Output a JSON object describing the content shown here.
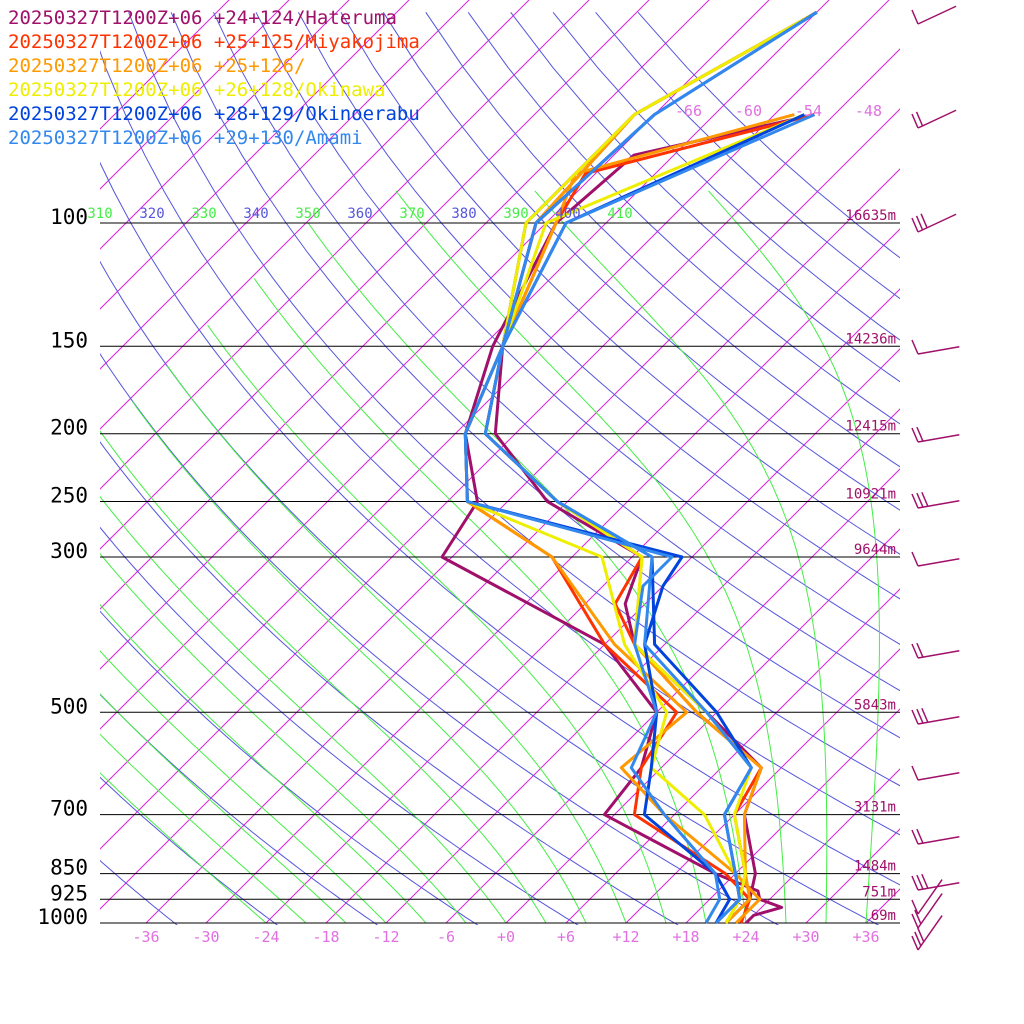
{
  "chart_data": {
    "type": "line",
    "subtype": "skew-t log-p sounding",
    "colors": {
      "isotherm": "#dd22dd",
      "dry_adiabat": "#5555dd",
      "moist_adiabat": "#44ee44",
      "isobar": "#000000",
      "height_label": "#a0106a",
      "wind_barb": "#a0106a"
    },
    "pressure_levels": [
      {
        "p": 100,
        "label": "100",
        "height": "16635m"
      },
      {
        "p": 150,
        "label": "150",
        "height": "14236m"
      },
      {
        "p": 200,
        "label": "200",
        "height": "12415m"
      },
      {
        "p": 250,
        "label": "250",
        "height": "10921m"
      },
      {
        "p": 300,
        "label": "300",
        "height": "9644m"
      },
      {
        "p": 500,
        "label": "500",
        "height": "5843m"
      },
      {
        "p": 700,
        "label": "700",
        "height": "3131m"
      },
      {
        "p": 850,
        "label": "850",
        "height": "1484m"
      },
      {
        "p": 925,
        "label": "925",
        "height": "751m"
      },
      {
        "p": 1000,
        "label": "1000",
        "height": "69m"
      }
    ],
    "x_ticks": [
      "-36",
      "-30",
      "-24",
      "-18",
      "-12",
      "-6",
      "+0",
      "+6",
      "+12",
      "+18",
      "+24",
      "+30",
      "+36"
    ],
    "x_tick_values": [
      -36,
      -30,
      -24,
      -18,
      -12,
      -6,
      0,
      6,
      12,
      18,
      24,
      30,
      36
    ],
    "isotherm_top_labels": [
      "-66",
      "-60",
      "-54",
      "-48"
    ],
    "isotherm_top_values": [
      -66,
      -60,
      -54,
      -48
    ],
    "theta_labels": [
      {
        "text": "310",
        "kind": "moist"
      },
      {
        "text": "320",
        "kind": "dry"
      },
      {
        "text": "330",
        "kind": "moist"
      },
      {
        "text": "340",
        "kind": "dry"
      },
      {
        "text": "350",
        "kind": "moist"
      },
      {
        "text": "360",
        "kind": "dry"
      },
      {
        "text": "370",
        "kind": "moist"
      },
      {
        "text": "380",
        "kind": "dry"
      },
      {
        "text": "390",
        "kind": "moist"
      },
      {
        "text": "400",
        "kind": "dry"
      },
      {
        "text": "410",
        "kind": "moist"
      }
    ],
    "series": [
      {
        "name": "20250327T1200Z+06 +24+124/Hateruma",
        "color": "#a0106a",
        "temperature": [
          [
            1000,
            24
          ],
          [
            975,
            24
          ],
          [
            950,
            26
          ],
          [
            925,
            23
          ],
          [
            900,
            22
          ],
          [
            850,
            16
          ],
          [
            700,
            -1
          ],
          [
            600,
            -2
          ],
          [
            500,
            -6
          ],
          [
            400,
            -18
          ],
          [
            300,
            -43
          ],
          [
            250,
            -45
          ],
          [
            200,
            -53
          ],
          [
            150,
            -59
          ],
          [
            100,
            -65
          ],
          [
            80,
            -64
          ],
          [
            70,
            -50
          ]
        ],
        "dewpoint": [
          [
            1000,
            22
          ],
          [
            925,
            22
          ],
          [
            850,
            20
          ],
          [
            700,
            13
          ],
          [
            600,
            10
          ],
          [
            500,
            -1
          ],
          [
            400,
            -15
          ],
          [
            350,
            -20
          ],
          [
            300,
            -23
          ],
          [
            250,
            -38
          ],
          [
            200,
            -50
          ],
          [
            150,
            -58
          ],
          [
            100,
            -68
          ],
          [
            70,
            -68
          ],
          [
            50,
            -60
          ]
        ]
      },
      {
        "name": "20250327T1200Z+06 +25+125/Miyakojima",
        "color": "#ff3300",
        "temperature": [
          [
            1000,
            23.5
          ],
          [
            925,
            22
          ],
          [
            850,
            17
          ],
          [
            700,
            2
          ],
          [
            600,
            -2
          ],
          [
            500,
            -4
          ],
          [
            400,
            -18
          ],
          [
            300,
            -32
          ],
          [
            250,
            -46
          ],
          [
            200,
            -53
          ],
          [
            150,
            -58
          ],
          [
            100,
            -65
          ],
          [
            85,
            -67
          ],
          [
            70,
            -50
          ]
        ],
        "dewpoint": [
          [
            1000,
            22
          ],
          [
            925,
            21
          ],
          [
            850,
            19
          ],
          [
            700,
            12
          ],
          [
            600,
            10
          ],
          [
            500,
            -2
          ],
          [
            400,
            -15
          ],
          [
            350,
            -21
          ],
          [
            300,
            -23
          ],
          [
            250,
            -37
          ],
          [
            200,
            -51
          ],
          [
            150,
            -58
          ],
          [
            100,
            -67
          ],
          [
            70,
            -68
          ],
          [
            50,
            -60
          ]
        ]
      },
      {
        "name": "20250327T1200Z+06 +25+126/",
        "color": "#ff9900",
        "temperature": [
          [
            1000,
            23
          ],
          [
            925,
            23
          ],
          [
            850,
            18
          ],
          [
            700,
            5
          ],
          [
            600,
            -4
          ],
          [
            500,
            -3
          ],
          [
            400,
            -17
          ],
          [
            300,
            -32
          ],
          [
            250,
            -46
          ],
          [
            200,
            -53
          ],
          [
            150,
            -58
          ],
          [
            100,
            -65
          ],
          [
            85,
            -68
          ],
          [
            70,
            -52
          ]
        ],
        "dewpoint": [
          [
            1000,
            22
          ],
          [
            925,
            22
          ],
          [
            850,
            19
          ],
          [
            700,
            13
          ],
          [
            600,
            10
          ],
          [
            500,
            -2
          ],
          [
            400,
            -15
          ],
          [
            300,
            -23
          ],
          [
            250,
            -37
          ],
          [
            200,
            -51
          ],
          [
            150,
            -58
          ],
          [
            100,
            -67
          ],
          [
            70,
            -68
          ],
          [
            50,
            -60
          ]
        ]
      },
      {
        "name": "20250327T1200Z+06 +26+128/Okinawa",
        "color": "#eeee00",
        "temperature": [
          [
            1000,
            22
          ],
          [
            925,
            21
          ],
          [
            850,
            18
          ],
          [
            700,
            9
          ],
          [
            600,
            -1
          ],
          [
            500,
            -5
          ],
          [
            400,
            -16
          ],
          [
            300,
            -27
          ],
          [
            250,
            -46
          ],
          [
            200,
            -53
          ],
          [
            150,
            -58
          ],
          [
            100,
            -66
          ],
          [
            70,
            -51
          ]
        ],
        "dewpoint": [
          [
            1000,
            22
          ],
          [
            925,
            21
          ],
          [
            850,
            19
          ],
          [
            700,
            12
          ],
          [
            600,
            9
          ],
          [
            500,
            -1
          ],
          [
            400,
            -15
          ],
          [
            300,
            -23
          ],
          [
            250,
            -37
          ],
          [
            200,
            -51
          ],
          [
            150,
            -58
          ],
          [
            100,
            -68
          ],
          [
            70,
            -68
          ],
          [
            50,
            -60
          ]
        ]
      },
      {
        "name": "20250327T1200Z+06 +28+129/Okinoerabu",
        "color": "#0044dd",
        "temperature": [
          [
            1000,
            21
          ],
          [
            925,
            20
          ],
          [
            850,
            16
          ],
          [
            700,
            3
          ],
          [
            600,
            -1
          ],
          [
            500,
            -6
          ],
          [
            400,
            -14
          ],
          [
            330,
            -18
          ],
          [
            300,
            -19
          ],
          [
            250,
            -46
          ],
          [
            200,
            -53
          ],
          [
            150,
            -58
          ],
          [
            100,
            -64
          ],
          [
            70,
            -51
          ]
        ],
        "dewpoint": [
          [
            1000,
            21
          ],
          [
            925,
            21
          ],
          [
            850,
            18
          ],
          [
            700,
            11
          ],
          [
            600,
            9
          ],
          [
            500,
            0
          ],
          [
            400,
            -13
          ],
          [
            300,
            -22
          ],
          [
            250,
            -37
          ],
          [
            200,
            -51
          ],
          [
            150,
            -58
          ],
          [
            100,
            -67
          ],
          [
            70,
            -66
          ],
          [
            50,
            -60
          ]
        ]
      },
      {
        "name": "20250327T1200Z+06 +29+130/Amami",
        "color": "#3388ee",
        "temperature": [
          [
            1000,
            20
          ],
          [
            925,
            19
          ],
          [
            850,
            16
          ],
          [
            700,
            5
          ],
          [
            600,
            -3
          ],
          [
            500,
            -6
          ],
          [
            400,
            -15
          ],
          [
            330,
            -20
          ],
          [
            300,
            -20
          ],
          [
            250,
            -46
          ],
          [
            200,
            -53
          ],
          [
            150,
            -58
          ],
          [
            100,
            -64
          ],
          [
            70,
            -50
          ]
        ],
        "dewpoint": [
          [
            1000,
            21
          ],
          [
            925,
            21
          ],
          [
            850,
            18
          ],
          [
            700,
            11
          ],
          [
            600,
            9
          ],
          [
            500,
            -1
          ],
          [
            400,
            -14
          ],
          [
            300,
            -22
          ],
          [
            250,
            -37
          ],
          [
            200,
            -51
          ],
          [
            150,
            -58
          ],
          [
            100,
            -67
          ],
          [
            70,
            -66
          ],
          [
            50,
            -60
          ]
        ]
      }
    ]
  }
}
